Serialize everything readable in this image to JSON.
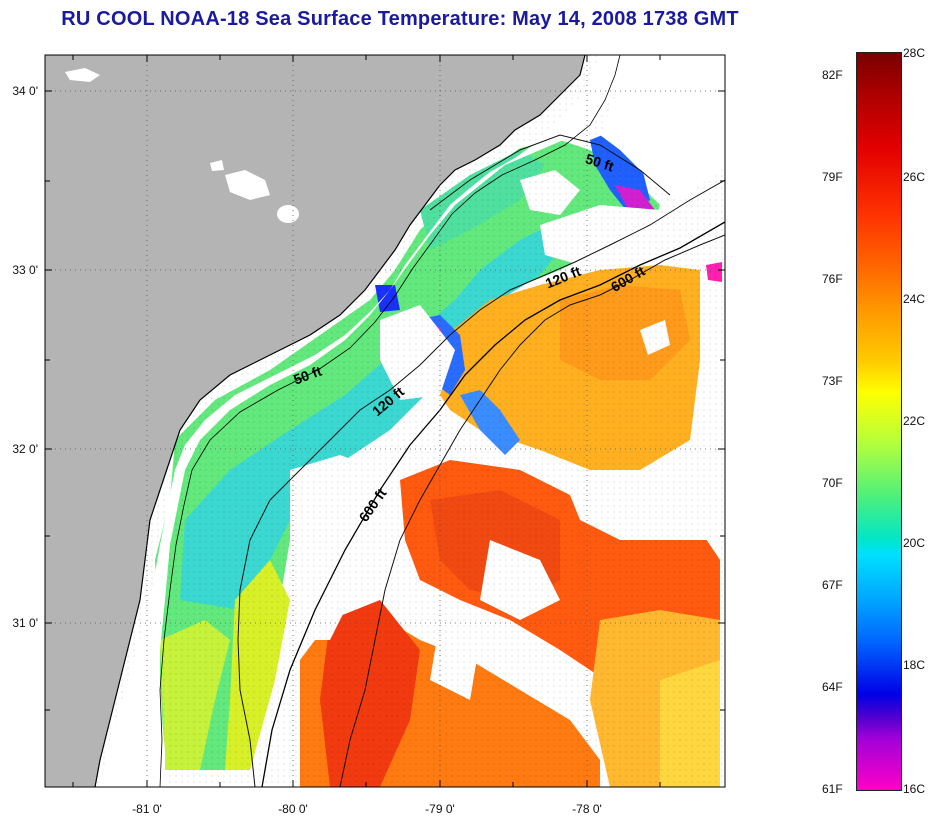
{
  "title": "RU COOL  NOAA-18  Sea Surface Temperature:  May 14, 2008 1738 GMT",
  "map": {
    "lat_labels": [
      "34 0'",
      "33 0'",
      "32 0'",
      "31 0'"
    ],
    "lon_labels": [
      "-81 0'",
      "-80 0'",
      "-79 0'",
      "-78 0'"
    ],
    "land_color": "#b4b4b4",
    "contours": [
      {
        "label": "50 ft"
      },
      {
        "label": "120 ft"
      },
      {
        "label": "600 ft"
      },
      {
        "label": "50 ft"
      },
      {
        "label": "120 ft"
      },
      {
        "label": "600 ft"
      }
    ]
  },
  "colorbar": {
    "fahrenheit_labels": [
      "82F",
      "79F",
      "76F",
      "73F",
      "70F",
      "67F",
      "64F",
      "61F"
    ],
    "celsius_labels": [
      "28C",
      "26C",
      "24C",
      "22C",
      "20C",
      "18C",
      "16C"
    ],
    "range_c": [
      16,
      28
    ]
  }
}
